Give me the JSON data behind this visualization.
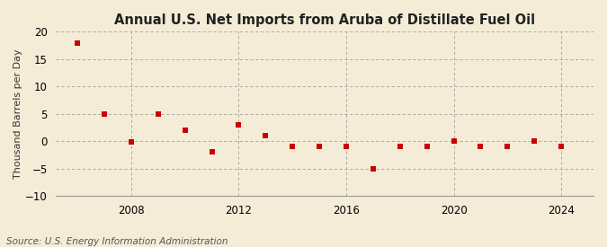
{
  "title": "Annual U.S. Net Imports from Aruba of Distillate Fuel Oil",
  "ylabel": "Thousand Barrels per Day",
  "source": "Source: U.S. Energy Information Administration",
  "years": [
    2006,
    2007,
    2008,
    2009,
    2010,
    2011,
    2012,
    2013,
    2014,
    2015,
    2016,
    2017,
    2018,
    2019,
    2020,
    2021,
    2022,
    2023,
    2024
  ],
  "values": [
    18,
    5,
    -0.2,
    5,
    2,
    -2,
    3,
    1,
    -1,
    -1,
    -1,
    -5,
    -1,
    -1,
    0,
    -1,
    -1,
    0,
    -1
  ],
  "marker_color": "#cc0000",
  "marker_size": 4,
  "background_color": "#f5ecd7",
  "grid_color": "#999999",
  "ylim": [
    -10,
    20
  ],
  "yticks": [
    -10,
    -5,
    0,
    5,
    10,
    15,
    20
  ],
  "xticks": [
    2008,
    2012,
    2016,
    2020,
    2024
  ],
  "xlim": [
    2005.2,
    2025.2
  ],
  "title_fontsize": 10.5,
  "tick_fontsize": 8.5,
  "ylabel_fontsize": 8,
  "source_fontsize": 7.5
}
